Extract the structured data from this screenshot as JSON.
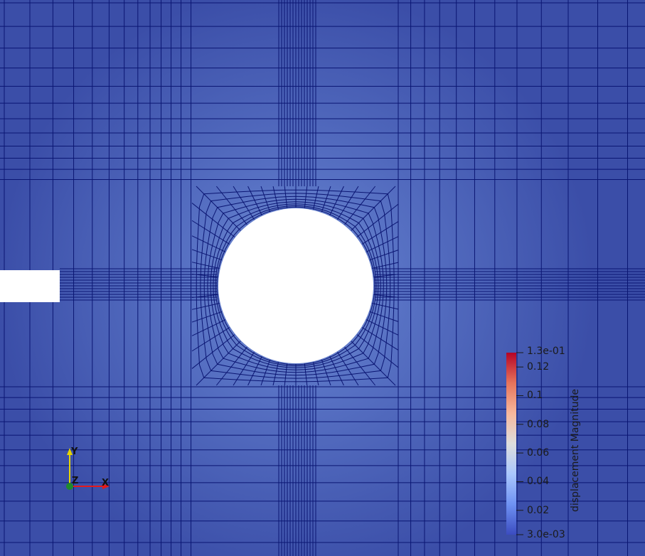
{
  "viewport": {
    "field_name": "displacement Magnitude",
    "background_color": "#3b4ea8",
    "hot_color": "#6a86ce",
    "mesh_color": "#0b1673"
  },
  "color_legend": {
    "title": "displacement Magnitude",
    "range_min_label": "3.0e-03",
    "range_max_label": "1.3e-01",
    "min_value": 0.003,
    "max_value": 0.13,
    "ticks": [
      {
        "value": 0.12,
        "label": "0.12"
      },
      {
        "value": 0.1,
        "label": "0.1"
      },
      {
        "value": 0.08,
        "label": "0.08"
      },
      {
        "value": 0.06,
        "label": "0.06"
      },
      {
        "value": 0.04,
        "label": "0.04"
      },
      {
        "value": 0.02,
        "label": "0.02"
      }
    ],
    "colors": [
      "#3b4cc0",
      "#6f92f3",
      "#aac7fd",
      "#dddddd",
      "#f7b89c",
      "#e7745b",
      "#b40426"
    ]
  },
  "axes_triad": {
    "x_label": "X",
    "y_label": "Y",
    "z_label": "Z",
    "x_color": "#e41a1c",
    "y_color": "#e6d400",
    "z_color": "#1e8a2e"
  }
}
